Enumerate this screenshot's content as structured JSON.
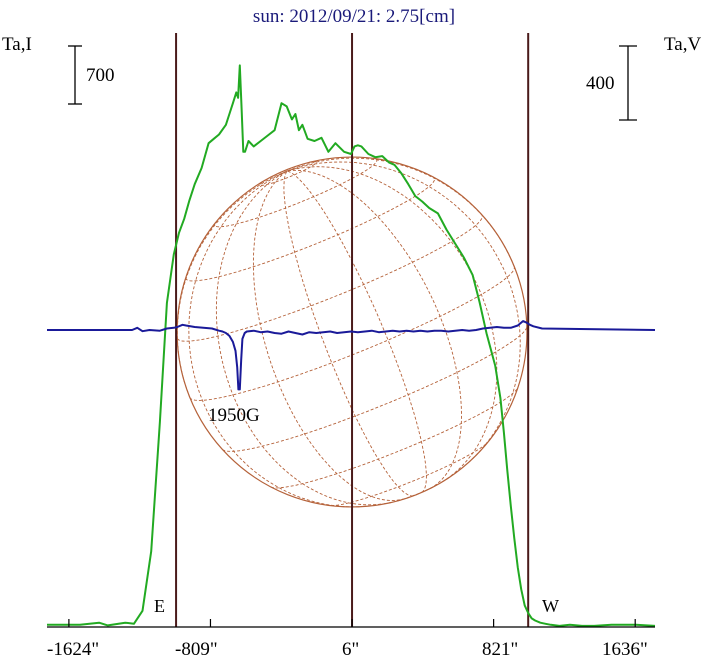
{
  "chart_data": {
    "type": "line",
    "title": "sun: 2012/09/21: 2.75[cm]",
    "ylabel_left": "Ta,I",
    "ylabel_right": "Ta,V",
    "scale_left_label": "700",
    "scale_right_label": "400",
    "xlim": [
      -1750,
      1750
    ],
    "x_ticks": [
      {
        "value": -1624,
        "label": "-1624\""
      },
      {
        "value": -809,
        "label": "-809\""
      },
      {
        "value": 6,
        "label": "6\""
      },
      {
        "value": 821,
        "label": "821\""
      },
      {
        "value": 1636,
        "label": "1636\""
      }
    ],
    "vertical_lines": [
      {
        "x": -1007,
        "label": "E"
      },
      {
        "x": 6,
        "label": ""
      },
      {
        "x": 1020,
        "label": "W"
      }
    ],
    "disk": {
      "center_x": 6,
      "radius": 1007
    },
    "annotations": [
      {
        "text": "1950G",
        "x": -640
      }
    ],
    "colors": {
      "intensity": "#22aa22",
      "polarization": "#1a1a99",
      "grid": "#b5623a",
      "title": "#1a1a7a"
    },
    "series": [
      {
        "key": "intensity",
        "color": "#22aa22",
        "ylim": [
          0,
          5500
        ],
        "x": [
          -1750,
          -1560,
          -1450,
          -1400,
          -1300,
          -1250,
          -1200,
          -1150,
          -1100,
          -1060,
          -1020,
          -990,
          -960,
          -930,
          -900,
          -860,
          -820,
          -790,
          -760,
          -720,
          -700,
          -680,
          -660,
          -650,
          -640,
          -630,
          -620,
          -610,
          -590,
          -560,
          -520,
          -480,
          -440,
          -400,
          -370,
          -340,
          -320,
          -300,
          -280,
          -250,
          -210,
          -170,
          -130,
          -90,
          -40,
          0,
          20,
          40,
          60,
          100,
          140,
          180,
          220,
          250,
          290,
          330,
          370,
          410,
          450,
          500,
          550,
          600,
          650,
          700,
          740,
          780,
          830,
          860,
          880,
          900,
          920,
          940,
          960,
          980,
          1000,
          1020,
          1040,
          1060,
          1090,
          1120,
          1150,
          1200,
          1260,
          1330,
          1400,
          1500,
          1600,
          1640,
          1750
        ],
        "y": [
          20,
          20,
          40,
          15,
          40,
          30,
          150,
          700,
          1900,
          3000,
          3450,
          3650,
          3780,
          3950,
          4100,
          4250,
          4480,
          4520,
          4560,
          4650,
          4750,
          4850,
          4950,
          4900,
          5200,
          4800,
          4400,
          4400,
          4500,
          4450,
          4500,
          4550,
          4600,
          4850,
          4820,
          4700,
          4750,
          4600,
          4650,
          4520,
          4500,
          4530,
          4400,
          4480,
          4400,
          4380,
          4450,
          4460,
          4450,
          4380,
          4350,
          4360,
          4300,
          4280,
          4200,
          4100,
          3990,
          3940,
          3880,
          3830,
          3680,
          3550,
          3420,
          3260,
          3010,
          2720,
          2420,
          2120,
          1800,
          1450,
          1120,
          820,
          550,
          350,
          200,
          130,
          80,
          60,
          40,
          30,
          20,
          10,
          20,
          10,
          10,
          20,
          20,
          20,
          10
        ]
      },
      {
        "key": "polarization",
        "color": "#1a1a99",
        "ylim": [
          -2000,
          2000
        ],
        "x": [
          -1750,
          -1260,
          -1230,
          -1200,
          -1160,
          -1100,
          -1060,
          -1020,
          -1000,
          -970,
          -950,
          -900,
          -850,
          -800,
          -760,
          -740,
          -720,
          -700,
          -680,
          -665,
          -655,
          -648,
          -640,
          -632,
          -625,
          -612,
          -600,
          -560,
          -520,
          -480,
          -440,
          -400,
          -360,
          -320,
          -280,
          -240,
          -200,
          -160,
          -120,
          -80,
          -40,
          0,
          40,
          80,
          120,
          160,
          200,
          240,
          280,
          320,
          360,
          400,
          440,
          480,
          520,
          560,
          600,
          640,
          680,
          720,
          760,
          800,
          840,
          880,
          920,
          960,
          990,
          1010,
          1030,
          1050,
          1100,
          1750
        ],
        "y": [
          0,
          0,
          15,
          -8,
          0,
          -5,
          10,
          15,
          20,
          35,
          30,
          20,
          15,
          10,
          -5,
          -10,
          -20,
          -40,
          -80,
          -140,
          -250,
          -400,
          -400,
          -200,
          -60,
          -20,
          -10,
          -5,
          -15,
          -10,
          -20,
          -25,
          -10,
          -20,
          -30,
          -15,
          -20,
          -15,
          -10,
          -20,
          -15,
          -10,
          -15,
          -10,
          -5,
          -15,
          -10,
          -5,
          -10,
          -5,
          -10,
          -5,
          -10,
          -5,
          -5,
          -10,
          -5,
          0,
          -5,
          0,
          10,
          15,
          20,
          15,
          15,
          30,
          60,
          50,
          35,
          25,
          10,
          0
        ]
      }
    ]
  }
}
